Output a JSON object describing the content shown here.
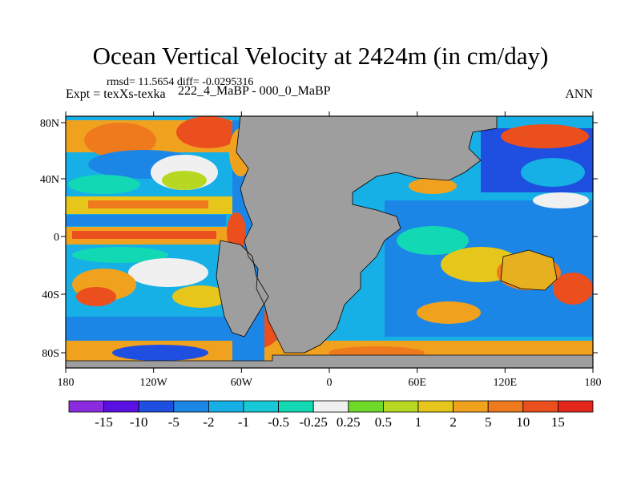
{
  "title": "Ocean Vertical Velocity at 2424m (in cm/day)",
  "stats": "rmsd= 11.5654 diff= -0.0295316",
  "experiment": "Expt = texXs-texka",
  "subtitle": "222_4_MaBP - 000_0_MaBP",
  "season": "ANN",
  "map": {
    "lon_ticks": [
      "180",
      "120W",
      "60W",
      "0",
      "60E",
      "120E",
      "180"
    ],
    "lat_ticks": [
      "80N",
      "40N",
      "0",
      "40S",
      "80S"
    ],
    "land_color": "#9e9e9e"
  },
  "colorbar": {
    "labels": [
      "-15",
      "-10",
      "-5",
      "-2",
      "-1",
      "-0.5",
      "-0.25",
      "0.25",
      "0.5",
      "1",
      "2",
      "5",
      "10",
      "15"
    ],
    "colors": [
      "#8a2be2",
      "#5a10e0",
      "#1e4fe0",
      "#1c86e6",
      "#17b0e6",
      "#17c9d6",
      "#12d8b4",
      "#f0f0f0",
      "#6fd92a",
      "#b6d822",
      "#e6c61a",
      "#f0a21e",
      "#ef7a1e",
      "#ec4f1e",
      "#e3261a"
    ]
  }
}
